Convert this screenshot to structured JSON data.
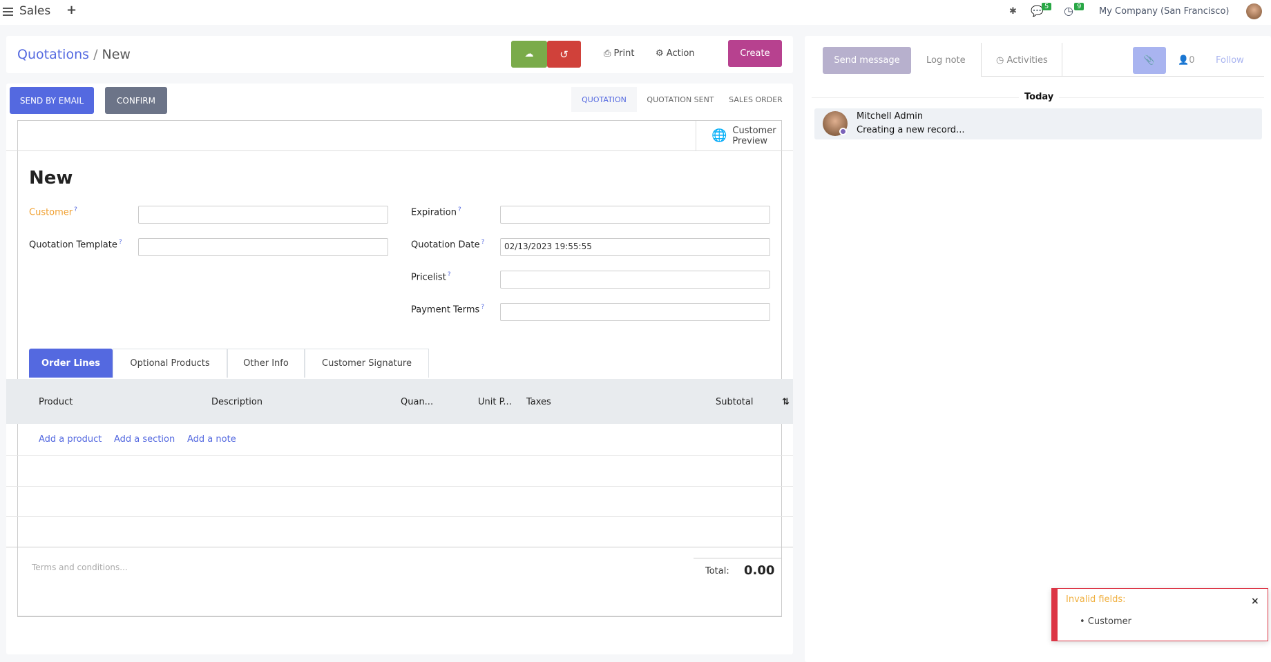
{
  "topbar": {
    "app": "Sales",
    "company": "My Company (San Francisco)",
    "messages_count": "5",
    "activities_count": "9"
  },
  "breadcrumb": {
    "parent": "Quotations",
    "current": "New"
  },
  "control": {
    "print": "Print",
    "action": "Action",
    "create": "Create"
  },
  "statusbar": {
    "send_email": "SEND BY EMAIL",
    "confirm": "CONFIRM",
    "stages": [
      "QUOTATION",
      "QUOTATION SENT",
      "SALES ORDER"
    ],
    "active_stage": "QUOTATION"
  },
  "form": {
    "customer_preview": "Customer Preview",
    "title": "New",
    "fields": {
      "customer": {
        "label": "Customer",
        "value": ""
      },
      "template": {
        "label": "Quotation Template",
        "value": ""
      },
      "expiration": {
        "label": "Expiration",
        "value": ""
      },
      "date": {
        "label": "Quotation Date",
        "value": "02/13/2023 19:55:55"
      },
      "pricelist": {
        "label": "Pricelist",
        "value": ""
      },
      "payment_terms": {
        "label": "Payment Terms",
        "value": ""
      }
    },
    "help": "?",
    "tabs": [
      "Order Lines",
      "Optional Products",
      "Other Info",
      "Customer Signature"
    ],
    "columns": [
      "Product",
      "Description",
      "Quan...",
      "Unit P...",
      "Taxes",
      "Subtotal"
    ],
    "add_links": [
      "Add a product",
      "Add a section",
      "Add a note"
    ],
    "terms_placeholder": "Terms and conditions...",
    "total_label": "Total:",
    "total": "0.00"
  },
  "chatter": {
    "send_message": "Send message",
    "log_note": "Log note",
    "activities": "Activities",
    "followers": "0",
    "follow": "Follow",
    "today": "Today",
    "message": {
      "author": "Mitchell Admin",
      "body": "Creating a new record..."
    }
  },
  "toast": {
    "title": "Invalid fields:",
    "items": [
      "Customer"
    ]
  },
  "colors": {
    "primary": "#5469e0",
    "save": "#7aab4a",
    "discard": "#d0413a",
    "create": "#b7418f",
    "confirm": "#6c7488",
    "error": "#dc3545",
    "required": "#f0a030"
  }
}
